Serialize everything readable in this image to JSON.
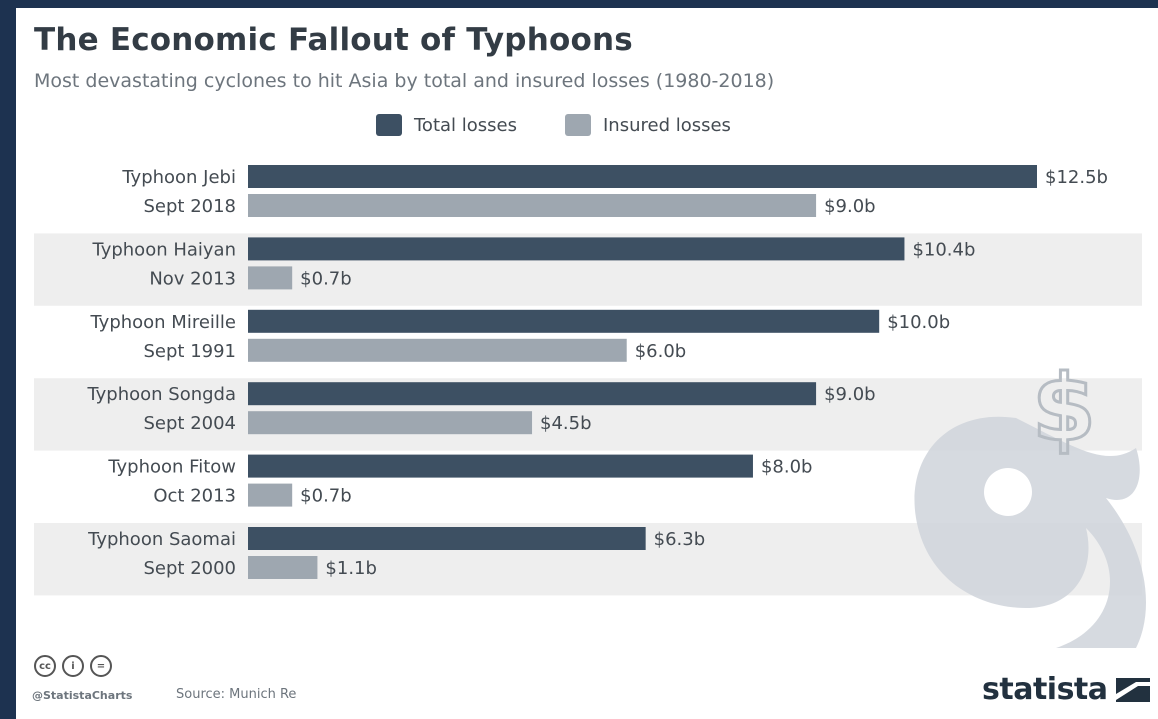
{
  "header": {
    "title": "The Economic Fallout of Typhoons",
    "subtitle": "Most devastating cyclones to hit Asia by total and insured losses (1980-2018)"
  },
  "legend": {
    "total": "Total losses",
    "insured": "Insured losses"
  },
  "colors": {
    "total": "#3d5063",
    "insured": "#9ea7b0",
    "band": "#eeeeee",
    "watermark": "#cfd4da"
  },
  "chart_data": {
    "type": "bar",
    "orientation": "horizontal",
    "title": "The Economic Fallout of Typhoons",
    "subtitle": "Most devastating cyclones to hit Asia by total and insured losses (1980-2018)",
    "categories": [
      [
        "Typhoon Jebi",
        "Sept 2018"
      ],
      [
        "Typhoon Haiyan",
        "Nov 2013"
      ],
      [
        "Typhoon Mireille",
        "Sept 1991"
      ],
      [
        "Typhoon Songda",
        "Sept 2004"
      ],
      [
        "Typhoon Fitow",
        "Oct 2013"
      ],
      [
        "Typhoon Saomai",
        "Sept 2000"
      ]
    ],
    "series": [
      {
        "name": "Total losses",
        "values": [
          12.5,
          10.4,
          10.0,
          9.0,
          8.0,
          6.3
        ],
        "labels": [
          "$12.5b",
          "$10.4b",
          "$10.0b",
          "$9.0b",
          "$8.0b",
          "$6.3b"
        ]
      },
      {
        "name": "Insured losses",
        "values": [
          9.0,
          0.7,
          6.0,
          4.5,
          0.7,
          1.1
        ],
        "labels": [
          "$9.0b",
          "$0.7b",
          "$6.0b",
          "$4.5b",
          "$0.7b",
          "$1.1b"
        ]
      }
    ],
    "unit": "billion USD",
    "xlim": [
      0,
      12.5
    ],
    "grid": false,
    "legend_position": "top-center"
  },
  "footer": {
    "license_icons": [
      "cc-icon",
      "by-icon",
      "nd-icon"
    ],
    "license_glyphs": [
      "cc",
      "i",
      "="
    ],
    "handle": "@StatistaCharts",
    "source": "Source: Munich Re",
    "brand": "statista"
  }
}
